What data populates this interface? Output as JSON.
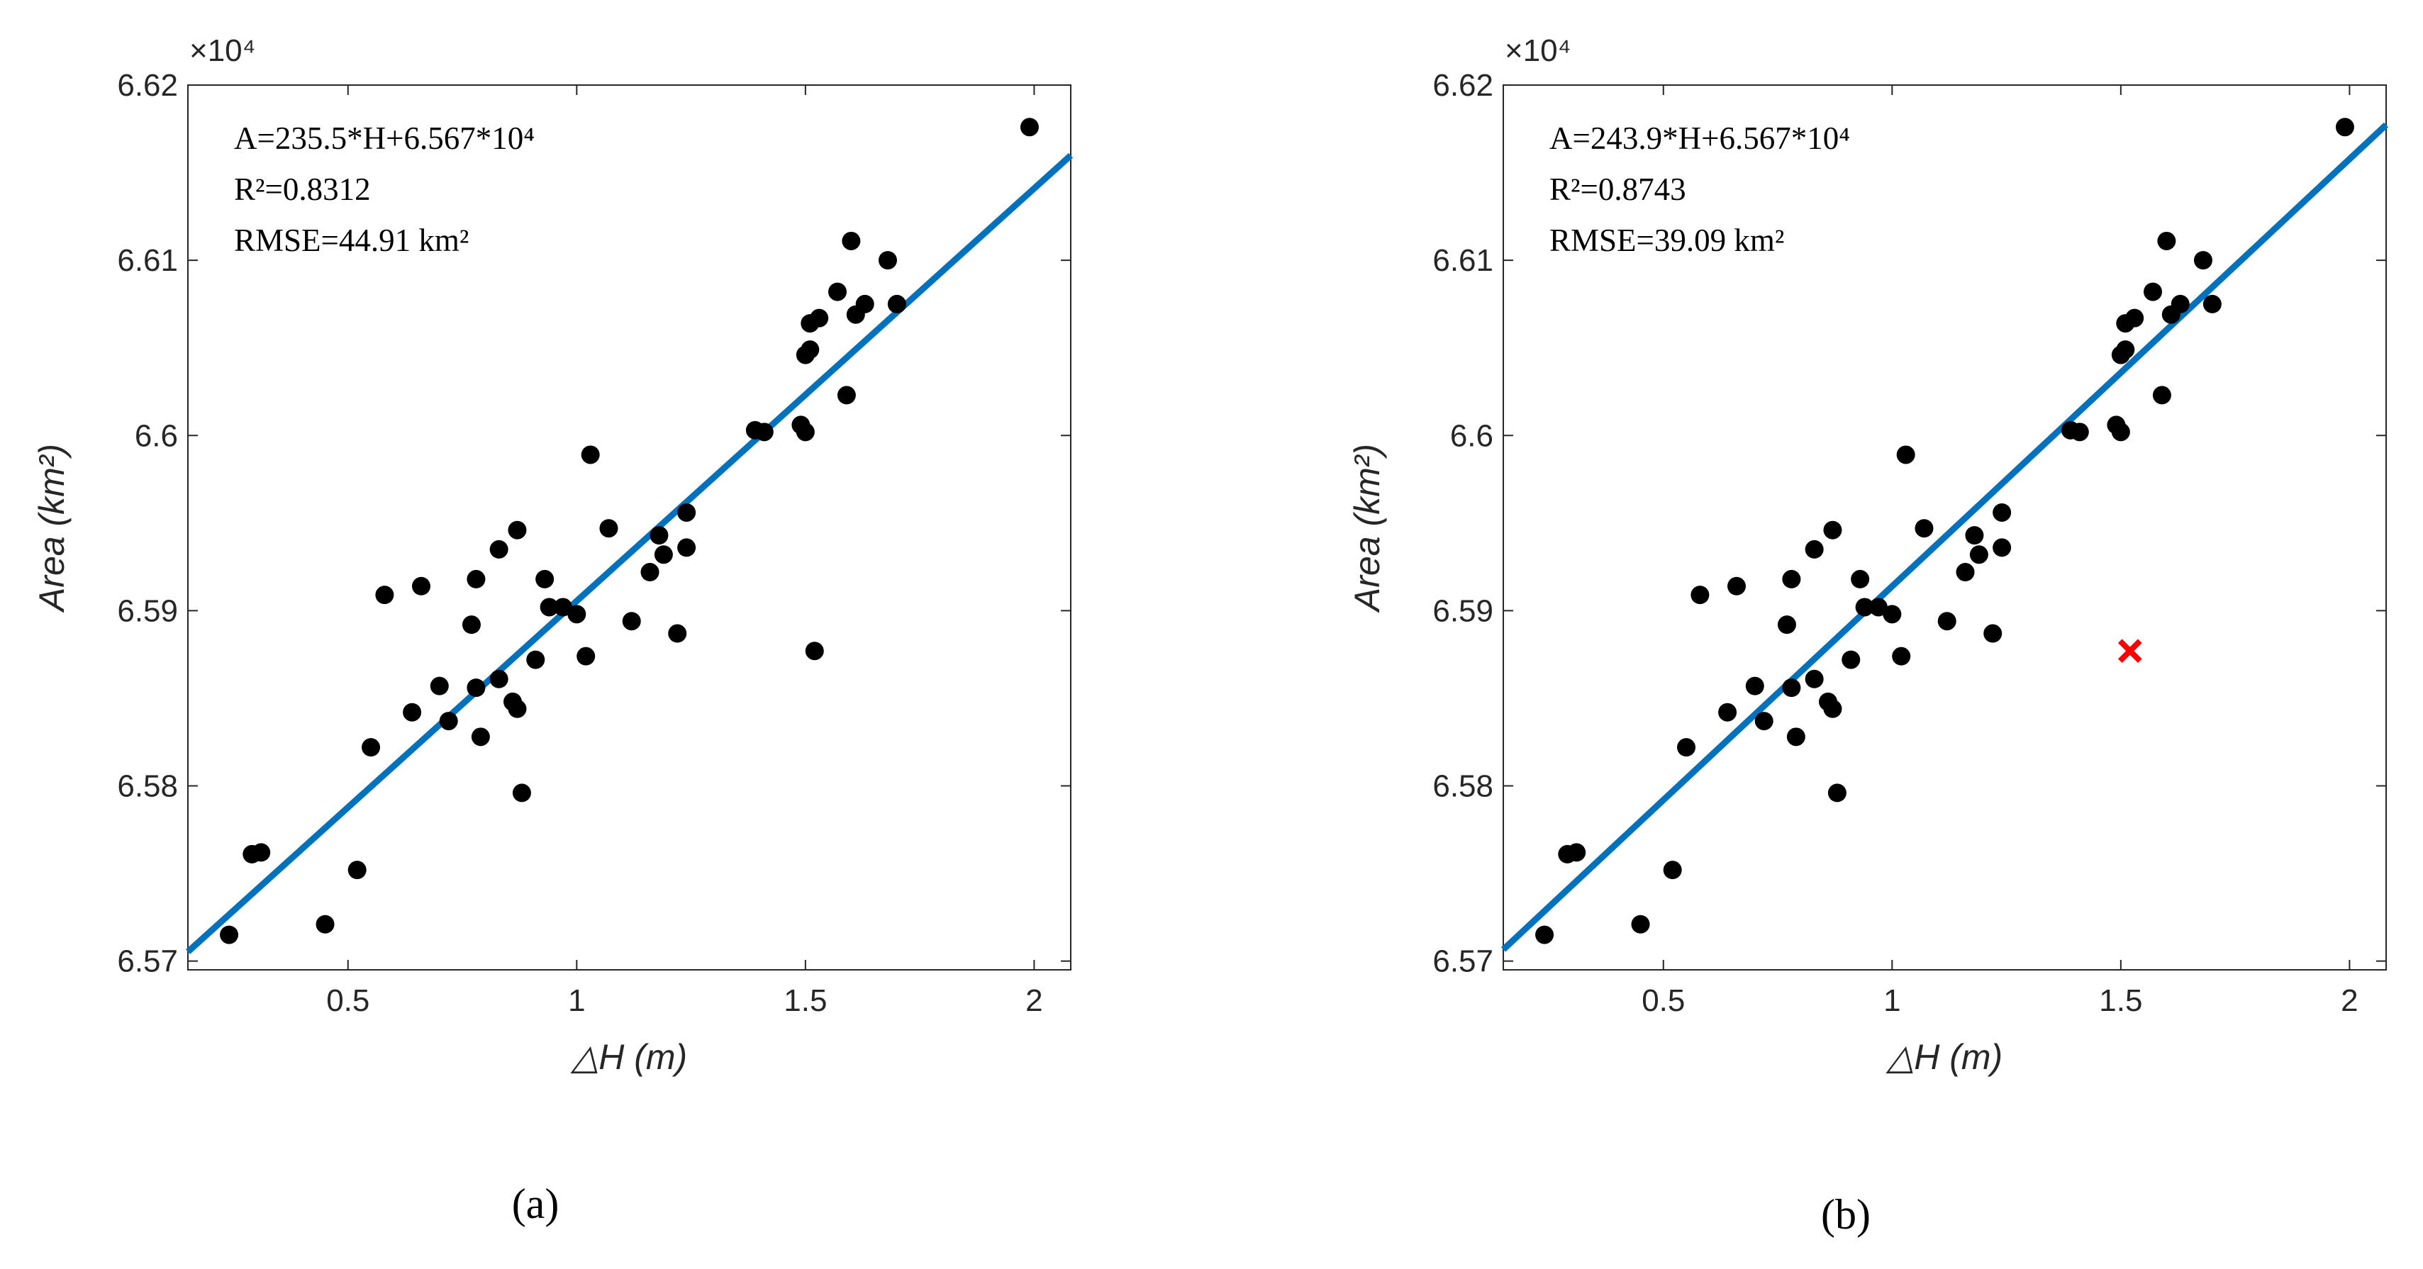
{
  "chart_data": [
    {
      "type": "scatter",
      "panel_label": "(a)",
      "xlabel": "△H (m)",
      "ylabel": "Area (km²)",
      "xlim": [
        0.15,
        2.08
      ],
      "ylim": [
        65.695,
        66.2
      ],
      "y_multiplier": "×10⁴",
      "xticks": [
        0.5,
        1,
        1.5,
        2
      ],
      "xtick_labels": [
        "0.5",
        "1",
        "1.5",
        "2"
      ],
      "yticks": [
        65.7,
        65.8,
        65.9,
        66.0,
        66.1,
        66.2
      ],
      "ytick_labels": [
        "6.57",
        "6.58",
        "6.59",
        "6.6",
        "6.61",
        "6.62"
      ],
      "equation": "A=235.5*H+6.567*10⁴",
      "r2": "R²=0.8312",
      "rmse": "RMSE=44.91 km²",
      "fit_line": {
        "slope": 235.5,
        "intercept": 65670,
        "color": "#0072BD"
      },
      "point_color": "#000000",
      "points": [
        {
          "x": 0.24,
          "y": 65.715
        },
        {
          "x": 0.29,
          "y": 65.761
        },
        {
          "x": 0.31,
          "y": 65.762
        },
        {
          "x": 0.45,
          "y": 65.721
        },
        {
          "x": 0.52,
          "y": 65.752
        },
        {
          "x": 0.55,
          "y": 65.822
        },
        {
          "x": 0.58,
          "y": 65.909
        },
        {
          "x": 0.64,
          "y": 65.842
        },
        {
          "x": 0.66,
          "y": 65.914
        },
        {
          "x": 0.7,
          "y": 65.857
        },
        {
          "x": 0.72,
          "y": 65.837
        },
        {
          "x": 0.77,
          "y": 65.892
        },
        {
          "x": 0.78,
          "y": 65.856
        },
        {
          "x": 0.78,
          "y": 65.918
        },
        {
          "x": 0.79,
          "y": 65.828
        },
        {
          "x": 0.83,
          "y": 65.935
        },
        {
          "x": 0.83,
          "y": 65.861
        },
        {
          "x": 0.86,
          "y": 65.848
        },
        {
          "x": 0.87,
          "y": 65.844
        },
        {
          "x": 0.87,
          "y": 65.946
        },
        {
          "x": 0.88,
          "y": 65.796
        },
        {
          "x": 0.91,
          "y": 65.872
        },
        {
          "x": 0.93,
          "y": 65.918
        },
        {
          "x": 0.94,
          "y": 65.902
        },
        {
          "x": 0.97,
          "y": 65.902
        },
        {
          "x": 1.0,
          "y": 65.898
        },
        {
          "x": 1.02,
          "y": 65.874
        },
        {
          "x": 1.03,
          "y": 65.989
        },
        {
          "x": 1.07,
          "y": 65.947
        },
        {
          "x": 1.12,
          "y": 65.894
        },
        {
          "x": 1.16,
          "y": 65.922
        },
        {
          "x": 1.18,
          "y": 65.943
        },
        {
          "x": 1.19,
          "y": 65.932
        },
        {
          "x": 1.22,
          "y": 65.887
        },
        {
          "x": 1.24,
          "y": 65.936
        },
        {
          "x": 1.24,
          "y": 65.956
        },
        {
          "x": 1.39,
          "y": 66.003
        },
        {
          "x": 1.41,
          "y": 66.002
        },
        {
          "x": 1.49,
          "y": 66.006
        },
        {
          "x": 1.5,
          "y": 66.046
        },
        {
          "x": 1.5,
          "y": 66.002
        },
        {
          "x": 1.51,
          "y": 66.064
        },
        {
          "x": 1.51,
          "y": 66.049
        },
        {
          "x": 1.52,
          "y": 65.877
        },
        {
          "x": 1.53,
          "y": 66.067
        },
        {
          "x": 1.57,
          "y": 66.082
        },
        {
          "x": 1.59,
          "y": 66.023
        },
        {
          "x": 1.6,
          "y": 66.111
        },
        {
          "x": 1.61,
          "y": 66.069
        },
        {
          "x": 1.63,
          "y": 66.075
        },
        {
          "x": 1.68,
          "y": 66.1
        },
        {
          "x": 1.7,
          "y": 66.075
        },
        {
          "x": 1.99,
          "y": 66.176
        }
      ]
    },
    {
      "type": "scatter",
      "panel_label": "(b)",
      "xlabel": "△H (m)",
      "ylabel": "Area (km²)",
      "xlim": [
        0.15,
        2.08
      ],
      "ylim": [
        65.695,
        66.2
      ],
      "y_multiplier": "×10⁴",
      "xticks": [
        0.5,
        1,
        1.5,
        2
      ],
      "xtick_labels": [
        "0.5",
        "1",
        "1.5",
        "2"
      ],
      "yticks": [
        65.7,
        65.8,
        65.9,
        66.0,
        66.1,
        66.2
      ],
      "ytick_labels": [
        "6.57",
        "6.58",
        "6.59",
        "6.6",
        "6.61",
        "6.62"
      ],
      "equation": "A=243.9*H+6.567*10⁴",
      "r2": "R²=0.8743",
      "rmse": "RMSE=39.09 km²",
      "fit_line": {
        "slope": 243.9,
        "intercept": 65670,
        "color": "#0072BD"
      },
      "point_color": "#000000",
      "outlier": {
        "x": 1.52,
        "y": 65.877,
        "color": "#FF0000"
      },
      "points": [
        {
          "x": 0.24,
          "y": 65.715
        },
        {
          "x": 0.29,
          "y": 65.761
        },
        {
          "x": 0.31,
          "y": 65.762
        },
        {
          "x": 0.45,
          "y": 65.721
        },
        {
          "x": 0.52,
          "y": 65.752
        },
        {
          "x": 0.55,
          "y": 65.822
        },
        {
          "x": 0.58,
          "y": 65.909
        },
        {
          "x": 0.64,
          "y": 65.842
        },
        {
          "x": 0.66,
          "y": 65.914
        },
        {
          "x": 0.7,
          "y": 65.857
        },
        {
          "x": 0.72,
          "y": 65.837
        },
        {
          "x": 0.77,
          "y": 65.892
        },
        {
          "x": 0.78,
          "y": 65.856
        },
        {
          "x": 0.78,
          "y": 65.918
        },
        {
          "x": 0.79,
          "y": 65.828
        },
        {
          "x": 0.83,
          "y": 65.935
        },
        {
          "x": 0.83,
          "y": 65.861
        },
        {
          "x": 0.86,
          "y": 65.848
        },
        {
          "x": 0.87,
          "y": 65.844
        },
        {
          "x": 0.87,
          "y": 65.946
        },
        {
          "x": 0.88,
          "y": 65.796
        },
        {
          "x": 0.91,
          "y": 65.872
        },
        {
          "x": 0.93,
          "y": 65.918
        },
        {
          "x": 0.94,
          "y": 65.902
        },
        {
          "x": 0.97,
          "y": 65.902
        },
        {
          "x": 1.0,
          "y": 65.898
        },
        {
          "x": 1.02,
          "y": 65.874
        },
        {
          "x": 1.03,
          "y": 65.989
        },
        {
          "x": 1.07,
          "y": 65.947
        },
        {
          "x": 1.12,
          "y": 65.894
        },
        {
          "x": 1.16,
          "y": 65.922
        },
        {
          "x": 1.18,
          "y": 65.943
        },
        {
          "x": 1.19,
          "y": 65.932
        },
        {
          "x": 1.22,
          "y": 65.887
        },
        {
          "x": 1.24,
          "y": 65.936
        },
        {
          "x": 1.24,
          "y": 65.956
        },
        {
          "x": 1.39,
          "y": 66.003
        },
        {
          "x": 1.41,
          "y": 66.002
        },
        {
          "x": 1.49,
          "y": 66.006
        },
        {
          "x": 1.5,
          "y": 66.046
        },
        {
          "x": 1.5,
          "y": 66.002
        },
        {
          "x": 1.51,
          "y": 66.064
        },
        {
          "x": 1.51,
          "y": 66.049
        },
        {
          "x": 1.53,
          "y": 66.067
        },
        {
          "x": 1.57,
          "y": 66.082
        },
        {
          "x": 1.59,
          "y": 66.023
        },
        {
          "x": 1.6,
          "y": 66.111
        },
        {
          "x": 1.61,
          "y": 66.069
        },
        {
          "x": 1.63,
          "y": 66.075
        },
        {
          "x": 1.68,
          "y": 66.1
        },
        {
          "x": 1.7,
          "y": 66.075
        },
        {
          "x": 1.99,
          "y": 66.176
        }
      ]
    }
  ]
}
